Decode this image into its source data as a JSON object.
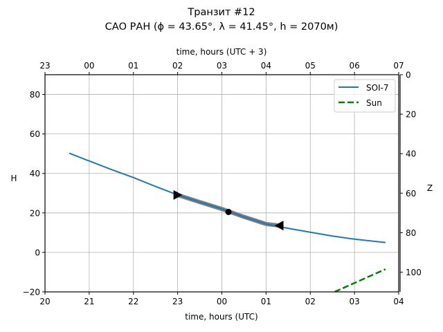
{
  "chart_data": {
    "type": "line",
    "title": "Транзит #12",
    "subtitle": "САО РАН (ϕ = 43.65°, λ = 41.45°, h = 2070м)",
    "xlabel": "time, hours (UTC)",
    "xlabel_top": "time, hours (UTC + 3)",
    "ylabel": "H",
    "ylabel_right": "Z",
    "xlim": [
      20,
      28
    ],
    "ylim": [
      -20,
      90
    ],
    "xticks": [
      20,
      21,
      22,
      23,
      24,
      25,
      26,
      27,
      28
    ],
    "xtick_labels": [
      "20",
      "21",
      "22",
      "23",
      "00",
      "01",
      "02",
      "03",
      "04"
    ],
    "xticks_top": [
      20,
      21,
      22,
      23,
      24,
      25,
      26,
      27,
      28
    ],
    "xtick_labels_top": [
      "23",
      "00",
      "01",
      "02",
      "03",
      "04",
      "05",
      "06",
      "07"
    ],
    "yticks": [
      -20,
      0,
      20,
      40,
      60,
      80
    ],
    "ytick_labels": [
      "−20",
      "0",
      "20",
      "40",
      "60",
      "80"
    ],
    "yticks_right": [
      0,
      20,
      40,
      60,
      80,
      100
    ],
    "ytick_labels_right": [
      "0",
      "20",
      "40",
      "60",
      "80",
      "100"
    ],
    "grid": true,
    "legend_position": "top-right",
    "series": [
      {
        "name": "SOI-7",
        "color": "#1f77b4",
        "style": "solid",
        "x": [
          20.55,
          21,
          21.5,
          22,
          22.5,
          23,
          23.5,
          24,
          24.5,
          25,
          25.5,
          26,
          26.5,
          27,
          27.5,
          27.7
        ],
        "y": [
          50.2,
          46.3,
          42.0,
          37.9,
          33.4,
          29.1,
          25.5,
          22.0,
          18.0,
          14.4,
          12.2,
          10.2,
          8.3,
          6.7,
          5.5,
          5.0
        ]
      },
      {
        "name": "Sun",
        "color": "#008000",
        "style": "dashed",
        "x": [
          26.55,
          27,
          27.7
        ],
        "y": [
          -20,
          -15.5,
          -8.5
        ]
      }
    ],
    "transit": {
      "color": "#808080",
      "start": {
        "x": 23.0,
        "y": 29.1
      },
      "middle": {
        "x": 24.15,
        "y": 20.5
      },
      "end": {
        "x": 25.3,
        "y": 13.6
      }
    }
  }
}
